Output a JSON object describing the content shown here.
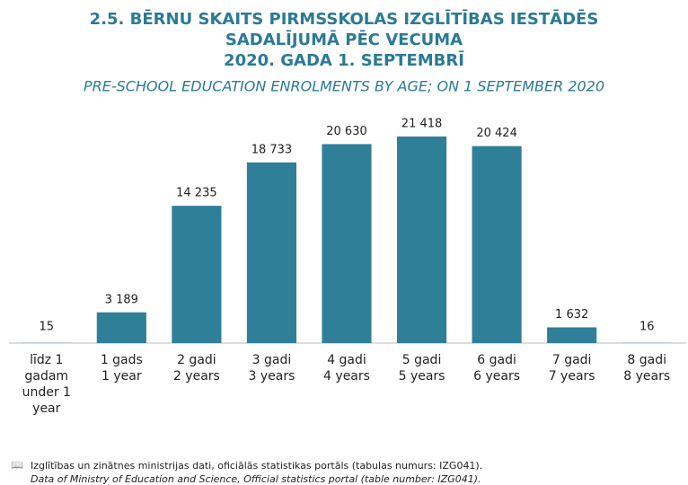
{
  "chart_data": {
    "type": "bar",
    "title": [
      "2.5. BĒRNU SKAITS PIRMSSKOLAS IZGLĪTĪBAS IESTĀDĒS",
      "SADALĪJUMĀ PĒC VECUMA",
      "2020. GADA 1. SEPTEMBRĪ"
    ],
    "subtitle": "PRE-SCHOOL EDUCATION ENROLMENTS BY AGE; ON 1 SEPTEMBER 2020",
    "categories": [
      [
        "līdz 1 gadam",
        "under 1 year"
      ],
      [
        "1 gads",
        "1 year"
      ],
      [
        "2 gadi",
        "2 years"
      ],
      [
        "3 gadi",
        "3 years"
      ],
      [
        "4 gadi",
        "4 years"
      ],
      [
        "5 gadi",
        "5 years"
      ],
      [
        "6 gadi",
        "6 years"
      ],
      [
        "7 gadi",
        "7 years"
      ],
      [
        "8 gadi",
        "8 years"
      ]
    ],
    "values": [
      15,
      3189,
      14235,
      18733,
      20630,
      21418,
      20424,
      1632,
      16
    ],
    "value_labels": [
      "15",
      "3 189",
      "14 235",
      "18 733",
      "20 630",
      "21 418",
      "20 424",
      "1 632",
      "16"
    ],
    "color": "#2f7f99",
    "source": [
      "Izglītības un zinātnes ministrijas dati, oficiālās statistikas portāls (tabulas numurs: IZG041).",
      "Data of Ministry of Education and Science, Official statistics portal (table number: IZG041)."
    ]
  }
}
